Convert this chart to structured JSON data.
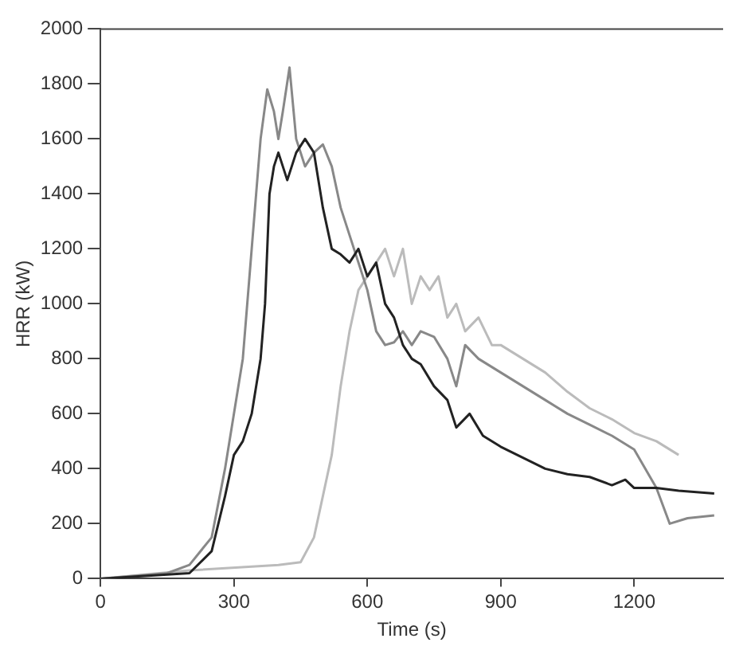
{
  "chart_data": {
    "type": "line",
    "xlabel": "Time (s)",
    "ylabel": "HRR (kW)",
    "xlim": [
      0,
      1400
    ],
    "xticks": [
      0,
      300,
      600,
      900,
      1200
    ],
    "ylim": [
      0,
      2000
    ],
    "yticks": [
      0,
      200,
      400,
      600,
      800,
      1000,
      1200,
      1400,
      1600,
      1800,
      2000
    ],
    "grid": false,
    "marker": "none",
    "series": [
      {
        "color": "#222222",
        "x": [
          0,
          100,
          200,
          250,
          280,
          300,
          320,
          340,
          360,
          370,
          380,
          390,
          400,
          420,
          440,
          460,
          480,
          500,
          520,
          540,
          560,
          580,
          600,
          620,
          640,
          660,
          680,
          700,
          720,
          750,
          780,
          800,
          830,
          860,
          900,
          950,
          1000,
          1050,
          1100,
          1150,
          1180,
          1200,
          1250,
          1300,
          1380
        ],
        "values": [
          0,
          10,
          20,
          100,
          300,
          450,
          500,
          600,
          800,
          1000,
          1400,
          1500,
          1550,
          1450,
          1550,
          1600,
          1550,
          1350,
          1200,
          1180,
          1150,
          1200,
          1100,
          1150,
          1000,
          950,
          850,
          800,
          780,
          700,
          650,
          550,
          600,
          520,
          480,
          440,
          400,
          380,
          370,
          340,
          360,
          330,
          330,
          320,
          310
        ]
      },
      {
        "color": "#888888",
        "x": [
          0,
          150,
          200,
          250,
          280,
          300,
          320,
          340,
          350,
          360,
          375,
          390,
          400,
          410,
          425,
          440,
          460,
          480,
          500,
          520,
          540,
          560,
          580,
          600,
          620,
          640,
          660,
          680,
          700,
          720,
          750,
          780,
          800,
          820,
          850,
          900,
          950,
          1000,
          1050,
          1100,
          1150,
          1200,
          1250,
          1280,
          1320,
          1380
        ],
        "values": [
          0,
          20,
          50,
          150,
          400,
          600,
          800,
          1200,
          1400,
          1600,
          1780,
          1700,
          1600,
          1700,
          1860,
          1600,
          1500,
          1550,
          1580,
          1500,
          1350,
          1250,
          1150,
          1050,
          900,
          850,
          860,
          900,
          850,
          900,
          880,
          800,
          700,
          850,
          800,
          750,
          700,
          650,
          600,
          560,
          520,
          470,
          330,
          200,
          220,
          230
        ]
      },
      {
        "color": "#bbbbbb",
        "x": [
          0,
          200,
          400,
          450,
          480,
          500,
          520,
          540,
          560,
          580,
          600,
          620,
          640,
          660,
          680,
          700,
          720,
          740,
          760,
          780,
          800,
          820,
          850,
          880,
          900,
          950,
          1000,
          1050,
          1100,
          1150,
          1200,
          1250,
          1300
        ],
        "values": [
          0,
          30,
          50,
          60,
          150,
          300,
          450,
          700,
          900,
          1050,
          1100,
          1150,
          1200,
          1100,
          1200,
          1000,
          1100,
          1050,
          1100,
          950,
          1000,
          900,
          950,
          850,
          850,
          800,
          750,
          680,
          620,
          580,
          530,
          500,
          450
        ]
      }
    ]
  }
}
